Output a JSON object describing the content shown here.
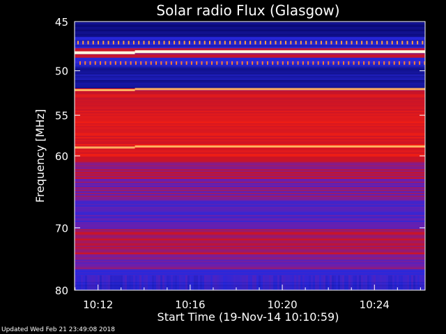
{
  "chart_data": {
    "type": "heatmap",
    "title": "Solar radio Flux (Glasgow)",
    "xlabel": "Start Time (19-Nov-14 10:10:59)",
    "ylabel": "Frequency [MHz]",
    "x_tick_labels": [
      "10:12",
      "10:16",
      "10:20",
      "10:24"
    ],
    "x_ticks_minutes": [
      12,
      16,
      20,
      24
    ],
    "xlim_minutes": [
      10.98,
      26.2
    ],
    "y_tick_labels": [
      "45",
      "50",
      "55",
      "60",
      "70",
      "80"
    ],
    "y_ticks": [
      45,
      50,
      55,
      60,
      70,
      80
    ],
    "ylim": [
      45,
      80
    ],
    "y_scale": "log",
    "colormap": "blue-red-yellow-white",
    "bright_lines_mhz": [
      48.0,
      52.0,
      58.8
    ],
    "grid": false
  },
  "footer": {
    "updated": "Updated Wed Feb 21 23:49:08 2018"
  },
  "colors": {
    "background": "#000000",
    "text": "#ffffff"
  }
}
